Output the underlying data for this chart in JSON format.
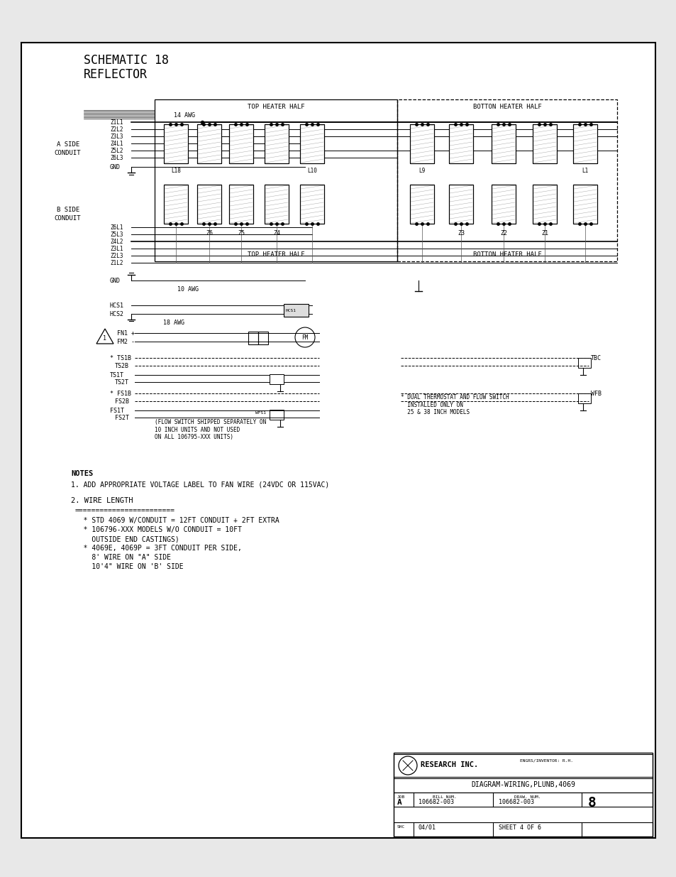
{
  "bg_color": "#ffffff",
  "page_bg": "#f0f0f0",
  "title_line1": "SCHEMATIC 18",
  "title_line2": "REFLECTOR",
  "top_heater_label": "TOP HEATER HALF",
  "bottom_heater_label": "BOTTON HEATER HALF",
  "a_side_wires": [
    "Z1L1",
    "Z2L2",
    "Z3L3",
    "Z4L1",
    "Z5L2",
    "Z6L3"
  ],
  "b_side_wires": [
    "Z6L1",
    "Z5L3",
    "Z4L2",
    "Z3L1",
    "Z2L3",
    "Z1L2"
  ],
  "gnd_label": "GND",
  "wire_14awg": "14 AWG",
  "wire_10awg": "10 AWG",
  "wire_18awg": "18 AWG",
  "zones_top_left": [
    "L18",
    "Z6",
    "Z5",
    "Z4",
    "L10"
  ],
  "zones_top_right": [
    "L9",
    "Z3",
    "Z2",
    "Z1",
    "L1"
  ],
  "hcs_labels": [
    "HCS1",
    "HCS2"
  ],
  "fan_labels": [
    "FN1 +",
    "FM2 -"
  ],
  "ts_b_labels": [
    "* TS1B",
    "TS2B"
  ],
  "ts_t_labels": [
    "TS1T",
    "TS2T"
  ],
  "fs_b_labels": [
    "* FS1B",
    "FS2B"
  ],
  "fs_t_labels": [
    "FS1T",
    "FS2T"
  ],
  "notes_title": "NOTES",
  "note1": "1. ADD APPROPRIATE VOLTAGE LABEL TO FAN WIRE (24VDC OR 115VAC)",
  "note2_title": "2. WIRE LENGTH",
  "note2_sep": "========================",
  "note2_lines": [
    "   * STD 4069 W/CONDUIT = 12FT CONDUIT + 2FT EXTRA",
    "   * 106796-XXX MODELS W/O CONDUIT = 10FT",
    "     OUTSIDE END CASTINGS)",
    "   * 4069E, 4069P = 3FT CONDUIT PER SIDE,",
    "     8' WIRE ON \"A\" SIDE",
    "     10'4\" WIRE ON 'B' SIDE"
  ],
  "flow_switch_note": "(FLOW SWITCH SHIPPED SEPARATELY ON\n10 INCH UNITS AND NOT USED\nON ALL 106795-XXX UNITS)",
  "dual_note": "* DUAL THERMOSTAT AND FLOW SWITCH\n  INSTALLED ONLY ON\n  25 & 38 INCH MODELS",
  "company": "RESEARCH INC.",
  "company_small": "ENGRS/INVENTOR: R.H.",
  "diagram_name": "DIAGRAM-WIRING,PLUNB,4069",
  "rev": "A",
  "part_num": "106682-003",
  "draw_num": "106682-003",
  "sheet": "8",
  "sheet_of": "SHEET 4 OF 6",
  "date": "04/01",
  "tbc_label": "TBC",
  "wfb_label": "WFB"
}
